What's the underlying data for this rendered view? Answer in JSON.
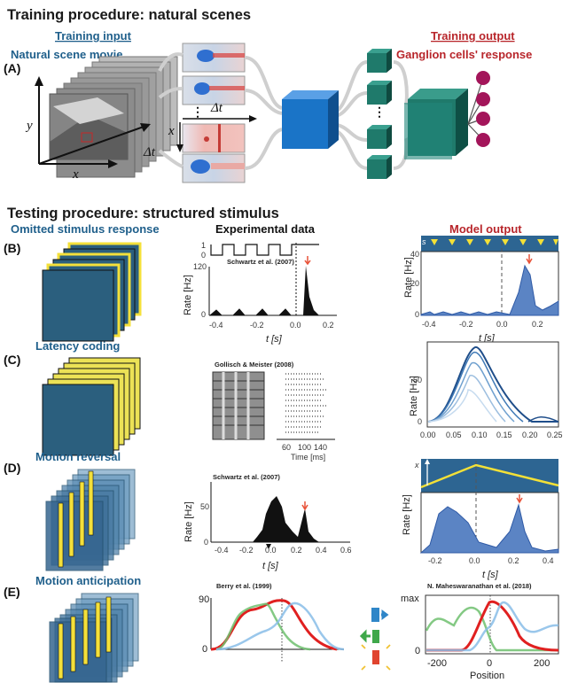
{
  "section_a": {
    "title": "Training procedure: natural scenes",
    "input_title": "Training input",
    "input_subtitle": "Natural scene movie",
    "output_title": "Training output",
    "output_subtitle": "Ganglion cells' response",
    "label": "(A)",
    "axis_x": "x",
    "axis_y": "y",
    "axis_dt": "Δt",
    "kernel_dt": "Δt",
    "kernel_x": "x",
    "ellipsis": "⋮"
  },
  "section_b_title": "Testing procedure: structured stimulus",
  "column_headers": {
    "stimulus": "Omitted stimulus response",
    "experimental": "Experimental data",
    "model": "Model output"
  },
  "rows": {
    "b": {
      "label": "(B)",
      "exp_citation": "Schwartz et al. (2007)",
      "exp_ylabel": "Rate [Hz]",
      "exp_xlabel": "t [s]",
      "exp_yticks": [
        "1",
        "0",
        "120",
        "0"
      ],
      "exp_xticks": [
        "-0.4",
        "-0.2",
        "0.0",
        "0.2"
      ],
      "model_ylabel": "Rate [Hz]",
      "model_xlabel": "t [s]",
      "model_s": "s",
      "model_yticks": [
        "40",
        "20",
        "0"
      ],
      "model_xticks": [
        "-0.4",
        "-0.2",
        "0.0",
        "0.2"
      ]
    },
    "c": {
      "label": "(C)",
      "title": "Latency coding",
      "exp_citation": "Gollisch & Meister (2008)",
      "exp_xlabel": "Time [ms]",
      "exp_xticks": [
        "60",
        "100",
        "140"
      ],
      "model_ylabel": "Rate [Hz]",
      "model_yticks": [
        "50",
        "0"
      ],
      "model_xticks": [
        "0.00",
        "0.05",
        "0.10",
        "0.15",
        "0.20",
        "0.25"
      ]
    },
    "d": {
      "label": "(D)",
      "title": "Motion reversal",
      "exp_citation": "Schwartz et al. (2007)",
      "exp_ylabel": "Rate [Hz]",
      "exp_xlabel": "t [s]",
      "exp_yticks": [
        "50",
        "0"
      ],
      "exp_xticks": [
        "-0.4",
        "-0.2",
        "0.0",
        "0.2",
        "0.4",
        "0.6"
      ],
      "model_ylabel": "Rate [Hz]",
      "model_xlabel": "t [s]",
      "model_x": "x",
      "model_xticks": [
        "-0.2",
        "0.0",
        "0.2",
        "0.4"
      ]
    },
    "e": {
      "label": "(E)",
      "title": "Motion anticipation",
      "exp_citation": "Berry et al. (1999)",
      "exp_yticks": [
        "90",
        "0"
      ],
      "model_citation": "N. Maheswaranathan et al. (2018)",
      "model_yticks": [
        "max",
        "0"
      ],
      "model_xticks": [
        "-200",
        "0",
        "200"
      ],
      "model_xlabel": "Position"
    }
  },
  "colors": {
    "blue_title": "#1f5f8b",
    "red_title": "#b8262b",
    "model_fill": "#5b84c4",
    "teal": "#1f6e6a",
    "yellow": "#f1e54c",
    "ganglion": "#a3155a"
  }
}
